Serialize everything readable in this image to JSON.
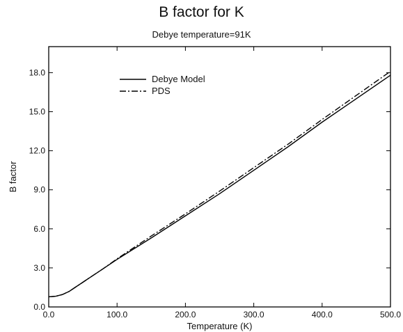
{
  "chart_data": {
    "type": "line",
    "title": "B factor for K",
    "subtitle": "Debye temperature=91K",
    "xlabel": "Temperature (K)",
    "ylabel": "B factor",
    "xlim": [
      0,
      500
    ],
    "ylim": [
      0,
      20
    ],
    "xticks": [
      0,
      100,
      200,
      300,
      400,
      500
    ],
    "xtick_labels": [
      "0.0",
      "100.0",
      "200.0",
      "300.0",
      "400.0",
      "500.0"
    ],
    "yticks": [
      0,
      3,
      6,
      9,
      12,
      15,
      18
    ],
    "ytick_labels": [
      "0.0",
      "3.0",
      "6.0",
      "9.0",
      "12.0",
      "15.0",
      "18.0"
    ],
    "grid": false,
    "legend_position": "top-left",
    "series": [
      {
        "name": "Debye Model",
        "style": "solid",
        "color": "#000000",
        "x": [
          0,
          10,
          20,
          30,
          40,
          50,
          60,
          70,
          80,
          100,
          150,
          200,
          250,
          300,
          350,
          400,
          450,
          500
        ],
        "y": [
          0.78,
          0.82,
          0.95,
          1.2,
          1.55,
          1.9,
          2.25,
          2.6,
          2.95,
          3.65,
          5.3,
          7.0,
          8.7,
          10.5,
          12.3,
          14.2,
          16.0,
          17.8
        ]
      },
      {
        "name": "PDS",
        "style": "dashdot",
        "color": "#000000",
        "x": [
          0,
          10,
          20,
          30,
          40,
          50,
          60,
          70,
          80,
          100,
          150,
          200,
          250,
          300,
          350,
          400,
          450,
          500
        ],
        "y": [
          0.78,
          0.82,
          0.95,
          1.2,
          1.55,
          1.9,
          2.25,
          2.6,
          2.95,
          3.7,
          5.45,
          7.15,
          8.9,
          10.7,
          12.5,
          14.4,
          16.25,
          18.1
        ]
      }
    ]
  }
}
